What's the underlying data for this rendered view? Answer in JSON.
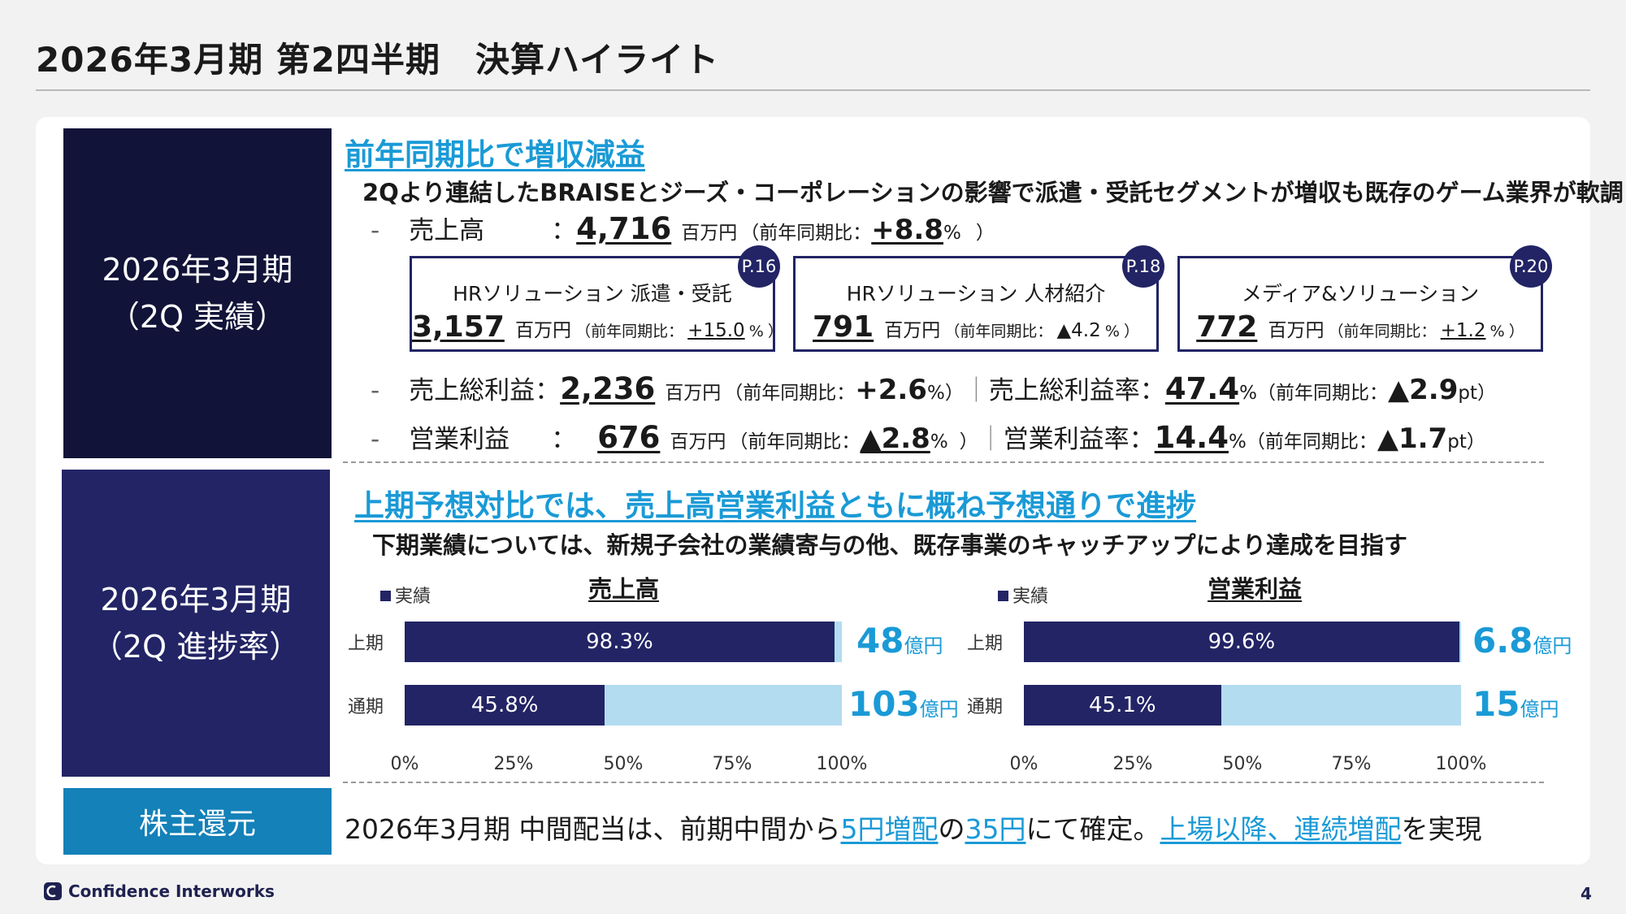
{
  "title": "2026年3月期 第2四半期　決算ハイライト",
  "section1": {
    "label_line1": "2026年3月期",
    "label_line2": "（2Q 実績）",
    "heading": "前年同期比で増収減益",
    "subtext": "2Qより連結したBRAISEとジーズ・コーポレーションの影響で派遣・受託セグメントが増収も既存のゲーム業界が軟調",
    "dash": "-",
    "colon": "：",
    "unit": "百万円",
    "yoy_open": "（前年同期比：",
    "pct": "%",
    "pt": "pt",
    "close": "）",
    "sep": "｜",
    "sales": {
      "label": "売上高",
      "value": "4,716",
      "yoy": "+8.8"
    },
    "segments": [
      {
        "name": "HRソリューション 派遣・受託",
        "value": "3,157",
        "yoy": "+15.0",
        "page": "P.16"
      },
      {
        "name": "HRソリューション 人材紹介",
        "value": "791",
        "yoy": "▲4.2",
        "page": "P.18"
      },
      {
        "name": "メディア&ソリューション",
        "value": "772",
        "yoy": "+1.2",
        "page": "P.20"
      }
    ],
    "gross": {
      "label": "売上総利益",
      "value": "2,236",
      "yoy": "+2.6",
      "rate_label": "売上総利益率",
      "rate": "47.4",
      "rate_yoy": "▲2.9"
    },
    "op": {
      "label": "営業利益",
      "value": "676",
      "yoy": "▲2.8",
      "rate_label": "営業利益率",
      "rate": "14.4",
      "rate_yoy": "▲1.7"
    }
  },
  "section2": {
    "label_line1": "2026年3月期",
    "label_line2": "（2Q 進捗率）",
    "heading": "上期予想対比では、売上高営業利益ともに概ね予想通りで進捗",
    "subtext": "下期業績については、新規子会社の業績寄与の他、既存事業のキャッチアップにより達成を目指す"
  },
  "chart_data": [
    {
      "type": "bar",
      "orientation": "horizontal",
      "title": "売上高",
      "legend": "実績",
      "categories": [
        "上期",
        "通期"
      ],
      "series": [
        {
          "name": "実績",
          "values": [
            98.3,
            45.8
          ]
        }
      ],
      "data_labels": [
        "98.3%",
        "45.8%"
      ],
      "targets": [
        {
          "value": "48",
          "unit": "億円"
        },
        {
          "value": "103",
          "unit": "億円"
        }
      ],
      "xlim": [
        0,
        100
      ],
      "ticks": [
        "0%",
        "25%",
        "50%",
        "75%",
        "100%"
      ]
    },
    {
      "type": "bar",
      "orientation": "horizontal",
      "title": "営業利益",
      "legend": "実績",
      "categories": [
        "上期",
        "通期"
      ],
      "series": [
        {
          "name": "実績",
          "values": [
            99.6,
            45.1
          ]
        }
      ],
      "data_labels": [
        "99.6%",
        "45.1%"
      ],
      "targets": [
        {
          "value": "6.8",
          "unit": "億円"
        },
        {
          "value": "15",
          "unit": "億円"
        }
      ],
      "xlim": [
        0,
        100
      ],
      "ticks": [
        "0%",
        "25%",
        "50%",
        "75%",
        "100%"
      ]
    }
  ],
  "section3": {
    "label": "株主還元",
    "t1": "2026年3月期 中間配当は、前期中間から",
    "h1": "5円増配",
    "t2": "の",
    "h2": "35円",
    "t3": "にて確定。",
    "h3": "上場以降、連続増配",
    "t4": "を実現"
  },
  "footer": {
    "company": "Confidence Interworks",
    "page": "4",
    "logo_icon": "ci-logo-icon"
  }
}
